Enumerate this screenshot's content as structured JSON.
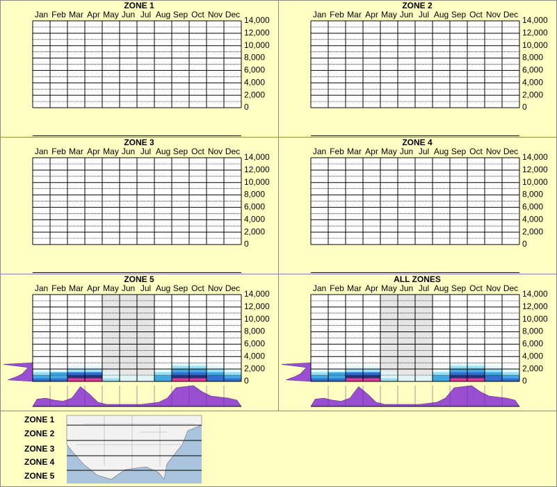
{
  "chart_data": [
    {
      "type": "heatmap",
      "title": "ZONE 1",
      "categories": [
        "Jan",
        "Feb",
        "Mar",
        "Apr",
        "May",
        "Jun",
        "Jul",
        "Aug",
        "Sep",
        "Oct",
        "Nov",
        "Dec"
      ],
      "ylim": [
        0,
        14000
      ],
      "yticks": [
        {
          "value": 0,
          "label": "0"
        },
        {
          "value": 2000,
          "label": "2,000"
        },
        {
          "value": 4000,
          "label": "4,000"
        },
        {
          "value": 6000,
          "label": "6,000"
        },
        {
          "value": 8000,
          "label": "8,000"
        },
        {
          "value": 10000,
          "label": "10,000"
        },
        {
          "value": 12000,
          "label": "12,000"
        },
        {
          "value": 14000,
          "label": "14,000"
        }
      ],
      "minor_yticks": [
        1000,
        3000,
        5000,
        7000,
        9000,
        11000,
        13000
      ]
    },
    {
      "type": "heatmap",
      "title": "ZONE 2",
      "categories": [
        "Jan",
        "Feb",
        "Mar",
        "Apr",
        "May",
        "Jun",
        "Jul",
        "Aug",
        "Sep",
        "Oct",
        "Nov",
        "Dec"
      ],
      "ylim": [
        0,
        14000
      ],
      "yticks": [
        {
          "value": 0,
          "label": "0"
        },
        {
          "value": 2000,
          "label": "2,000"
        },
        {
          "value": 4000,
          "label": "4,000"
        },
        {
          "value": 6000,
          "label": "6,000"
        },
        {
          "value": 8000,
          "label": "8,000"
        },
        {
          "value": 10000,
          "label": "10,000"
        },
        {
          "value": 12000,
          "label": "12,000"
        },
        {
          "value": 14000,
          "label": "14,000"
        }
      ],
      "minor_yticks": [
        1000,
        3000,
        5000,
        7000,
        9000,
        11000,
        13000
      ]
    },
    {
      "type": "heatmap",
      "title": "ZONE 3",
      "categories": [
        "Jan",
        "Feb",
        "Mar",
        "Apr",
        "May",
        "Jun",
        "Jul",
        "Aug",
        "Sep",
        "Oct",
        "Nov",
        "Dec"
      ],
      "ylim": [
        0,
        14000
      ],
      "yticks": [
        {
          "value": 0,
          "label": "0"
        },
        {
          "value": 2000,
          "label": "2,000"
        },
        {
          "value": 4000,
          "label": "4,000"
        },
        {
          "value": 6000,
          "label": "6,000"
        },
        {
          "value": 8000,
          "label": "8,000"
        },
        {
          "value": 10000,
          "label": "10,000"
        },
        {
          "value": 12000,
          "label": "12,000"
        },
        {
          "value": 14000,
          "label": "14,000"
        }
      ],
      "minor_yticks": [
        1000,
        3000,
        5000,
        7000,
        9000,
        11000,
        13000
      ]
    },
    {
      "type": "heatmap",
      "title": "ZONE 4",
      "categories": [
        "Jan",
        "Feb",
        "Mar",
        "Apr",
        "May",
        "Jun",
        "Jul",
        "Aug",
        "Sep",
        "Oct",
        "Nov",
        "Dec"
      ],
      "ylim": [
        0,
        14000
      ],
      "yticks": [
        {
          "value": 0,
          "label": "0"
        },
        {
          "value": 2000,
          "label": "2,000"
        },
        {
          "value": 4000,
          "label": "4,000"
        },
        {
          "value": 6000,
          "label": "6,000"
        },
        {
          "value": 8000,
          "label": "8,000"
        },
        {
          "value": 10000,
          "label": "10,000"
        },
        {
          "value": 12000,
          "label": "12,000"
        },
        {
          "value": 14000,
          "label": "14,000"
        }
      ],
      "minor_yticks": [
        1000,
        3000,
        5000,
        7000,
        9000,
        11000,
        13000
      ]
    },
    {
      "type": "heatmap",
      "title": "ZONE 5",
      "categories": [
        "Jan",
        "Feb",
        "Mar",
        "Apr",
        "May",
        "Jun",
        "Jul",
        "Aug",
        "Sep",
        "Oct",
        "Nov",
        "Dec"
      ],
      "ylim": [
        0,
        14000
      ],
      "yticks": [
        {
          "value": 0,
          "label": "0"
        },
        {
          "value": 2000,
          "label": "2,000"
        },
        {
          "value": 4000,
          "label": "4,000"
        },
        {
          "value": 6000,
          "label": "6,000"
        },
        {
          "value": 8000,
          "label": "8,000"
        },
        {
          "value": 10000,
          "label": "10,000"
        },
        {
          "value": 12000,
          "label": "12,000"
        },
        {
          "value": 14000,
          "label": "14,000"
        }
      ],
      "minor_yticks": [
        1000,
        3000,
        5000,
        7000,
        9000,
        11000,
        13000
      ],
      "shaded_months": [
        4,
        5,
        6
      ],
      "density_y": [
        0,
        500,
        1000,
        1500,
        2000,
        2500,
        3000
      ],
      "density": [
        [
          0.6,
          0.65,
          0.9,
          0.95,
          0.2,
          0.15,
          0.15,
          0.55,
          0.95,
          0.95,
          0.7,
          0.6
        ],
        [
          0.5,
          0.55,
          0.8,
          0.8,
          0.1,
          0.1,
          0.1,
          0.45,
          0.85,
          0.85,
          0.6,
          0.5
        ],
        [
          0.35,
          0.4,
          0.6,
          0.6,
          0.05,
          0,
          0,
          0.3,
          0.65,
          0.65,
          0.45,
          0.35
        ],
        [
          0.1,
          0.15,
          0.3,
          0.3,
          0,
          0,
          0,
          0.15,
          0.4,
          0.4,
          0.2,
          0.1
        ],
        [
          0,
          0,
          0.1,
          0.1,
          0,
          0,
          0,
          0,
          0.2,
          0.2,
          0.1,
          0
        ],
        [
          0,
          0,
          0,
          0,
          0,
          0,
          0,
          0,
          0.1,
          0.12,
          0,
          0
        ]
      ],
      "elevation_profile": [
        0.85,
        0.55,
        0.35,
        0.25,
        0.15,
        1.0
      ],
      "month_profile": [
        0.35,
        0.4,
        0.3,
        0.25,
        0.4,
        0.95,
        0.6,
        0.2,
        0.1,
        0.1,
        0.1,
        0.1,
        0.1,
        0.15,
        0.2,
        0.4,
        0.9,
        0.95,
        1.0,
        0.7,
        0.5,
        0.45,
        0.4,
        0.3
      ]
    },
    {
      "type": "heatmap",
      "title": "ALL ZONES",
      "categories": [
        "Jan",
        "Feb",
        "Mar",
        "Apr",
        "May",
        "Jun",
        "Jul",
        "Aug",
        "Sep",
        "Oct",
        "Nov",
        "Dec"
      ],
      "ylim": [
        0,
        14000
      ],
      "yticks": [
        {
          "value": 0,
          "label": "0"
        },
        {
          "value": 2000,
          "label": "2,000"
        },
        {
          "value": 4000,
          "label": "4,000"
        },
        {
          "value": 6000,
          "label": "6,000"
        },
        {
          "value": 8000,
          "label": "8,000"
        },
        {
          "value": 10000,
          "label": "10,000"
        },
        {
          "value": 12000,
          "label": "12,000"
        },
        {
          "value": 14000,
          "label": "14,000"
        }
      ],
      "minor_yticks": [
        1000,
        3000,
        5000,
        7000,
        9000,
        11000,
        13000
      ],
      "shaded_months": [
        4,
        5,
        6
      ],
      "density_y": [
        0,
        500,
        1000,
        1500,
        2000,
        2500,
        3000
      ],
      "density": [
        [
          0.6,
          0.65,
          0.9,
          0.95,
          0.2,
          0.15,
          0.15,
          0.55,
          0.95,
          0.95,
          0.7,
          0.6
        ],
        [
          0.5,
          0.55,
          0.8,
          0.8,
          0.1,
          0.1,
          0.1,
          0.45,
          0.85,
          0.85,
          0.6,
          0.5
        ],
        [
          0.35,
          0.4,
          0.6,
          0.6,
          0.05,
          0,
          0,
          0.3,
          0.65,
          0.65,
          0.45,
          0.35
        ],
        [
          0.1,
          0.15,
          0.3,
          0.3,
          0,
          0,
          0,
          0.15,
          0.4,
          0.4,
          0.2,
          0.1
        ],
        [
          0,
          0,
          0.1,
          0.1,
          0,
          0,
          0,
          0,
          0.2,
          0.2,
          0.1,
          0
        ],
        [
          0,
          0,
          0,
          0,
          0,
          0,
          0,
          0,
          0.1,
          0.12,
          0,
          0
        ]
      ],
      "elevation_profile": [
        0.85,
        0.55,
        0.35,
        0.25,
        0.15,
        1.0
      ],
      "month_profile": [
        0.35,
        0.4,
        0.3,
        0.25,
        0.4,
        0.95,
        0.6,
        0.2,
        0.1,
        0.1,
        0.1,
        0.1,
        0.1,
        0.15,
        0.2,
        0.4,
        0.9,
        0.95,
        1.0,
        0.7,
        0.5,
        0.45,
        0.4,
        0.3
      ]
    }
  ],
  "legend": [
    "ZONE 1",
    "ZONE 2",
    "ZONE 3",
    "ZONE 4",
    "ZONE 5"
  ]
}
